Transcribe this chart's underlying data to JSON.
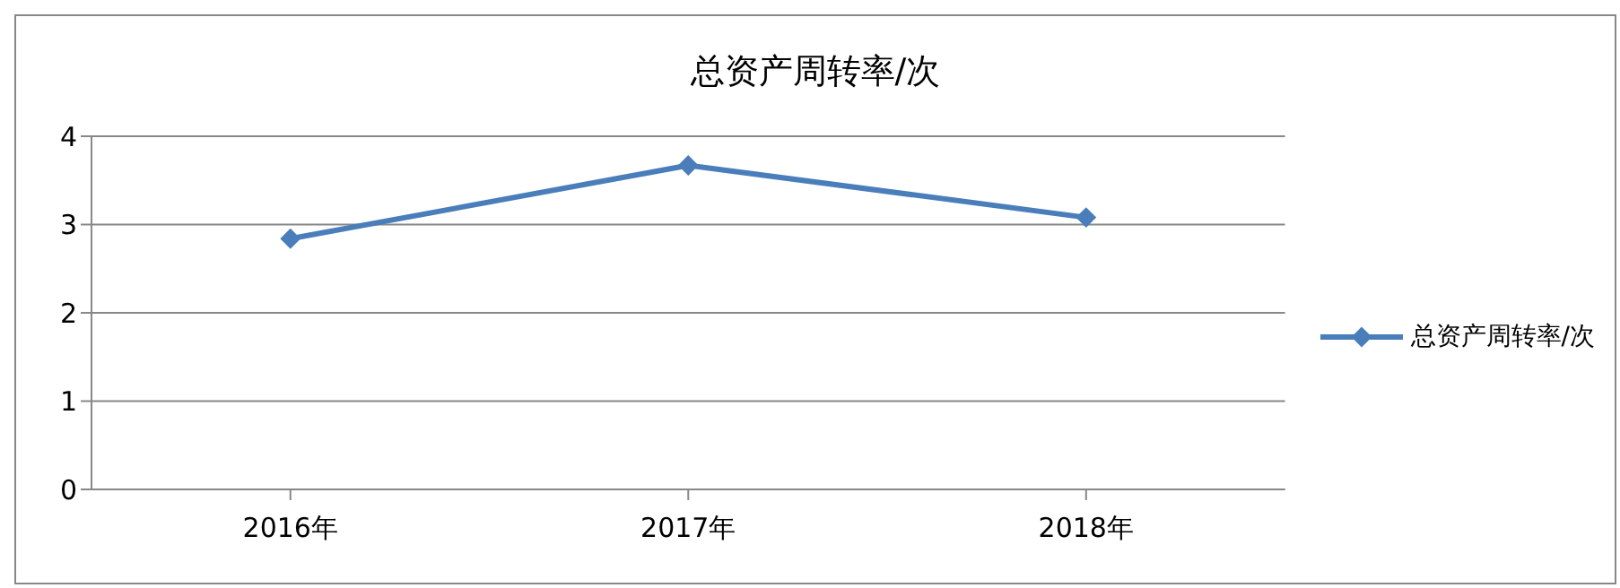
{
  "chart_data": {
    "type": "line",
    "title": "总资产周转率/次",
    "categories": [
      "2016年",
      "2017年",
      "2018年"
    ],
    "series": [
      {
        "name": "总资产周转率/次",
        "color": "#4a7ebb",
        "values": [
          2.84,
          3.67,
          3.08
        ]
      }
    ],
    "ylim": [
      0,
      4
    ],
    "yticks": [
      0,
      1,
      2,
      3,
      4
    ],
    "grid": "y",
    "legend": "right",
    "marker": "diamond",
    "line_style": "solid"
  }
}
